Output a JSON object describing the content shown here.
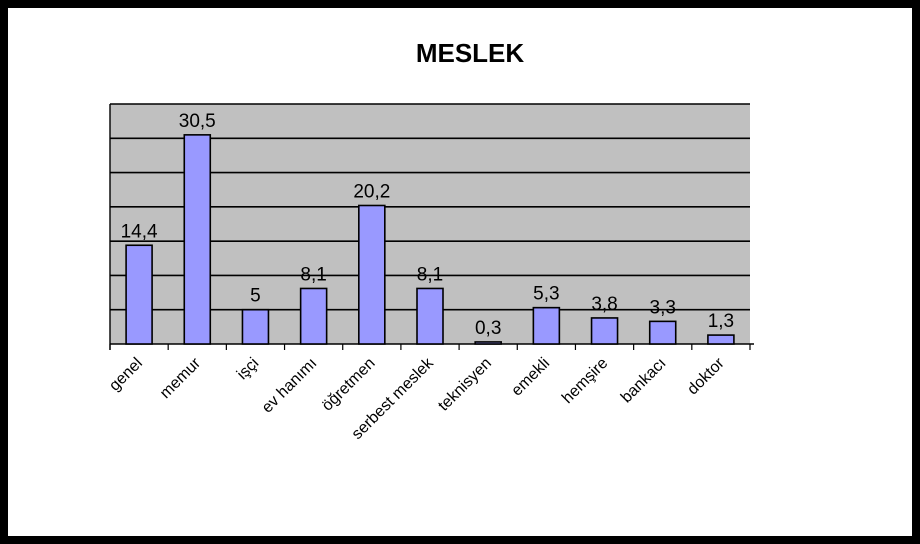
{
  "chart_data": {
    "type": "bar",
    "title": "MESLEK",
    "categories": [
      "genel",
      "memur",
      "işçi",
      "ev hanımı",
      "öğretmen",
      "serbest meslek",
      "teknisyen",
      "emekli",
      "hemşire",
      "bankacı",
      "doktor"
    ],
    "values": [
      14.4,
      30.5,
      5,
      8.1,
      20.2,
      8.1,
      0.3,
      5.3,
      3.8,
      3.3,
      1.3
    ],
    "value_labels": [
      "14,4",
      "30,5",
      "5",
      "8,1",
      "20,2",
      "8,1",
      "0,3",
      "5,3",
      "3,8",
      "3,3",
      "1,3"
    ],
    "ylim": [
      0,
      35
    ],
    "grid": true,
    "legend": "none",
    "colors": {
      "plot_bg": "#c0c0c0",
      "bar_fill": "#9999ff",
      "bar_stroke": "#000000",
      "grid": "#000000",
      "frame": "#000000"
    }
  }
}
